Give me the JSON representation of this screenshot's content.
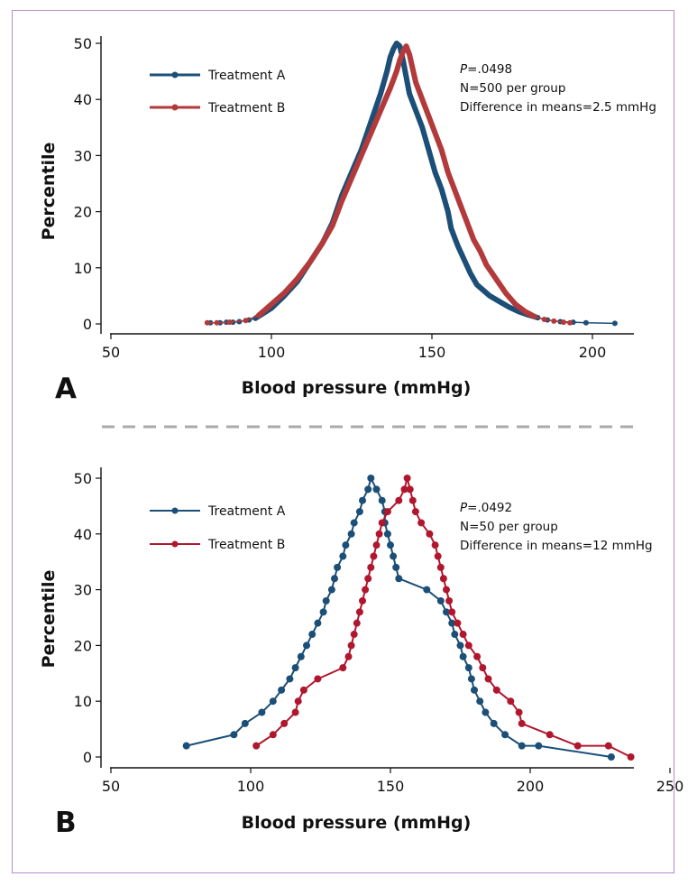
{
  "chart_data": [
    {
      "panel": "A",
      "type": "line",
      "xlabel": "Blood pressure (mmHg)",
      "ylabel": "Percentile",
      "xlim": [
        50,
        210
      ],
      "ylim": [
        0,
        50
      ],
      "xticks": [
        50,
        100,
        150,
        200
      ],
      "yticks": [
        0,
        10,
        20,
        30,
        40,
        50
      ],
      "legend": "top-left",
      "annotation": {
        "p_prefix": "P",
        "p_value": "=.0498",
        "n_text": "N=500 per group",
        "diff_text": "Difference in means=2.5 mmHg"
      },
      "series": [
        {
          "name": "Treatment A",
          "color": "#1b4f77",
          "line_style": "thick",
          "x": [
            81,
            84,
            86,
            88,
            90,
            93,
            95,
            100,
            104,
            108,
            112,
            116,
            119,
            122,
            125,
            128,
            131,
            134,
            136,
            137,
            138,
            139,
            140,
            141,
            142,
            143,
            145,
            147,
            149,
            151,
            153,
            155,
            156,
            158,
            160,
            162,
            164,
            166,
            168,
            171,
            174,
            177,
            180,
            183,
            186,
            190,
            194,
            198,
            207
          ],
          "y": [
            0.2,
            0.2,
            0.3,
            0.3,
            0.4,
            0.7,
            1,
            2.8,
            5,
            7.5,
            11,
            14.5,
            18,
            23,
            27,
            31,
            36,
            41,
            45,
            47.5,
            49,
            50,
            49.5,
            47,
            44,
            41,
            38,
            35,
            31,
            27,
            24,
            20,
            17,
            14,
            11.5,
            9,
            7,
            6,
            5,
            4,
            3,
            2.2,
            1.6,
            1.1,
            0.7,
            0.4,
            0.3,
            0.2,
            0.1
          ]
        },
        {
          "name": "Treatment B",
          "color": "#b23a3a",
          "line_style": "thick",
          "x": [
            80,
            83,
            87,
            92,
            96,
            100,
            104,
            108,
            112,
            116,
            119,
            122,
            125,
            128,
            131,
            134,
            137,
            139,
            140,
            141,
            142,
            143,
            145,
            147,
            149,
            151,
            153,
            155,
            157,
            159,
            161,
            163,
            165,
            167,
            170,
            173,
            176,
            179,
            182,
            185,
            188,
            191,
            193
          ],
          "y": [
            0.2,
            0.2,
            0.3,
            0.6,
            1.5,
            3.5,
            5.5,
            8,
            11,
            14.5,
            17.5,
            22,
            26,
            30,
            34,
            38,
            42,
            45,
            47,
            48.5,
            49.5,
            48,
            43,
            40,
            37,
            34,
            31,
            27,
            24,
            21,
            18,
            15,
            13,
            10.5,
            8,
            5.5,
            3.5,
            2.2,
            1.3,
            0.8,
            0.5,
            0.3,
            0.2
          ]
        }
      ]
    },
    {
      "panel": "B",
      "type": "line",
      "xlabel": "Blood pressure (mmHg)",
      "ylabel": "Percentile",
      "xlim": [
        50,
        255
      ],
      "ylim": [
        0,
        50
      ],
      "xticks": [
        50,
        100,
        150,
        200,
        250
      ],
      "yticks": [
        0,
        10,
        20,
        30,
        40,
        50
      ],
      "legend": "top-left",
      "annotation": {
        "p_prefix": "P",
        "p_value": "=.0492",
        "n_text": "N=50 per group",
        "diff_text": "Difference in means=12 mmHg"
      },
      "series": [
        {
          "name": "Treatment A",
          "color": "#1b4f77",
          "x": [
            77,
            94,
            98,
            104,
            108,
            111,
            114,
            116,
            118,
            120,
            122,
            124,
            126,
            127,
            129,
            130,
            131,
            133,
            134,
            136,
            137,
            139,
            140,
            142,
            143,
            145,
            147,
            148,
            148,
            149,
            150,
            151,
            152,
            153,
            163,
            168,
            170,
            172,
            173,
            175,
            176,
            178,
            179,
            180,
            182,
            184,
            187,
            191,
            197,
            203,
            229
          ],
          "y": [
            2,
            4,
            6,
            8,
            10,
            12,
            14,
            16,
            18,
            20,
            22,
            24,
            26,
            28,
            30,
            32,
            34,
            36,
            38,
            40,
            42,
            44,
            46,
            48,
            50,
            48,
            46,
            44,
            42,
            40,
            38,
            36,
            34,
            32,
            30,
            28,
            26,
            24,
            22,
            20,
            18,
            16,
            14,
            12,
            10,
            8,
            6,
            4,
            2,
            2,
            0
          ]
        },
        {
          "name": "Treatment B",
          "color": "#b0172e",
          "x": [
            102,
            108,
            112,
            116,
            117,
            119,
            124,
            133,
            135,
            136,
            137,
            138,
            139,
            140,
            141,
            142,
            143,
            144,
            145,
            146,
            147,
            149,
            153,
            155,
            156,
            157,
            158,
            159,
            161,
            164,
            166,
            167,
            168,
            169,
            170,
            171,
            172,
            174,
            176,
            178,
            181,
            183,
            185,
            188,
            193,
            196,
            197,
            207,
            217,
            228,
            236
          ],
          "y": [
            2,
            4,
            6,
            8,
            10,
            12,
            14,
            16,
            18,
            20,
            22,
            24,
            26,
            28,
            30,
            32,
            34,
            36,
            38,
            40,
            42,
            44,
            46,
            48,
            50,
            48,
            46,
            44,
            42,
            40,
            38,
            36,
            34,
            32,
            30,
            28,
            26,
            24,
            22,
            20,
            18,
            16,
            14,
            12,
            10,
            8,
            6,
            4,
            2,
            2,
            0
          ]
        }
      ]
    }
  ]
}
